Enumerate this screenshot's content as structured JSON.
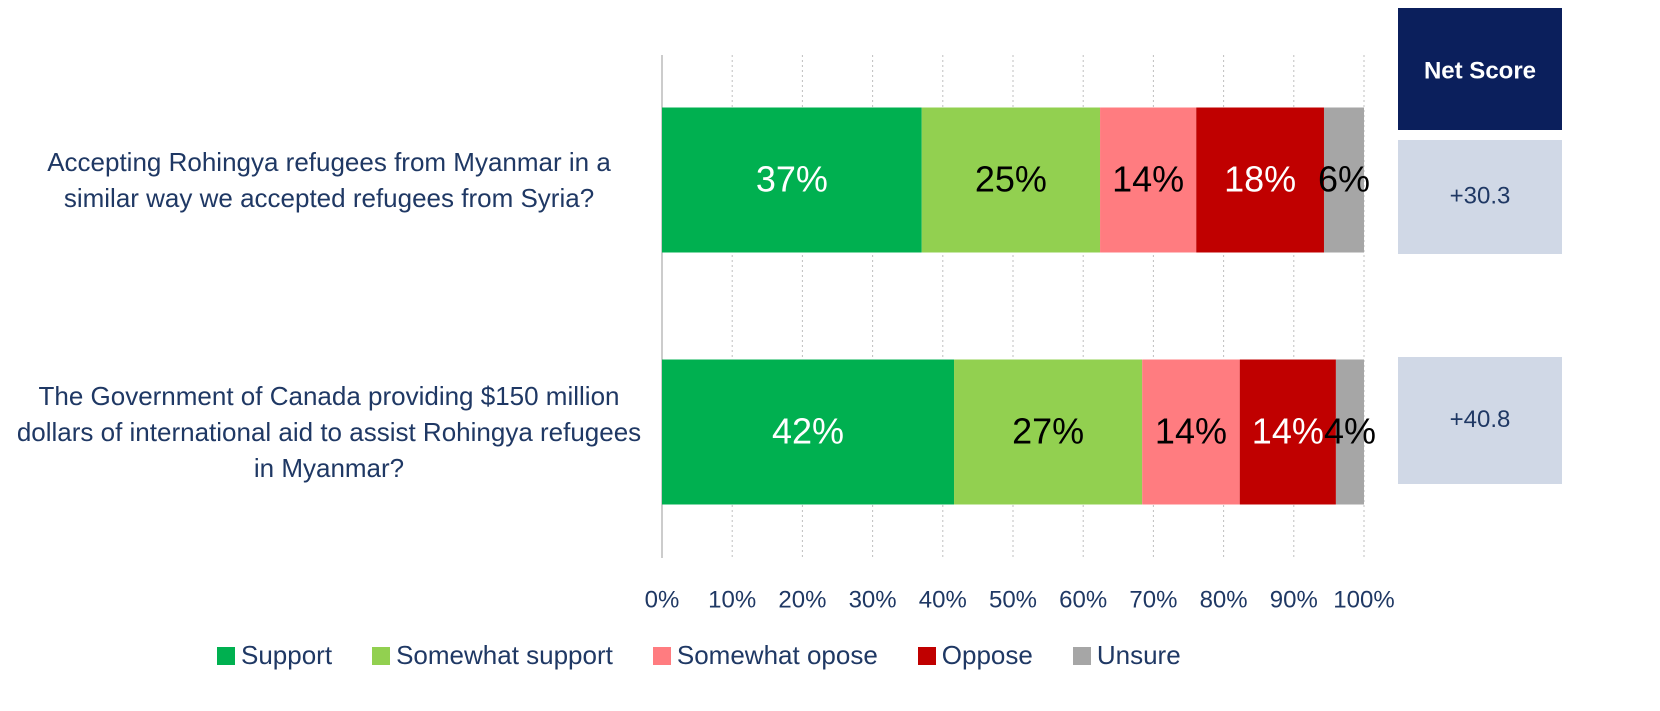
{
  "chart_data": {
    "type": "stacked_barh",
    "categories": [
      "Accepting Rohingya refugees from Myanmar in a similar way we accepted refugees from Syria?",
      "The Government of Canada providing $150 million dollars of international aid to assist Rohingya refugees in Myanmar?"
    ],
    "series": [
      {
        "name": "Support",
        "color": "#00b050",
        "label_color": "#ffffff",
        "values": [
          37.0,
          41.6
        ],
        "value_labels": [
          "37%",
          "42%"
        ]
      },
      {
        "name": "Somewhat support",
        "color": "#92d050",
        "label_color": "#000000",
        "values": [
          25.4,
          26.8
        ],
        "value_labels": [
          "25%",
          "27%"
        ]
      },
      {
        "name": "Somewhat opose",
        "color": "#ff7c80",
        "label_color": "#000000",
        "values": [
          13.7,
          13.9
        ],
        "value_labels": [
          "14%",
          "14%"
        ]
      },
      {
        "name": "Oppose",
        "color": "#c00000",
        "label_color": "#ffffff",
        "values": [
          18.2,
          13.7
        ],
        "value_labels": [
          "18%",
          "14%"
        ]
      },
      {
        "name": "Unsure",
        "color": "#a6a6a6",
        "label_color": "#000000",
        "values": [
          5.7,
          4.0
        ],
        "value_labels": [
          "6%",
          "4%"
        ]
      }
    ],
    "xlim": [
      0,
      100
    ],
    "xticks": [
      {
        "value": 0,
        "label": "0%"
      },
      {
        "value": 10,
        "label": "10%"
      },
      {
        "value": 20,
        "label": "20%"
      },
      {
        "value": 30,
        "label": "30%"
      },
      {
        "value": 40,
        "label": "40%"
      },
      {
        "value": 50,
        "label": "50%"
      },
      {
        "value": 60,
        "label": "60%"
      },
      {
        "value": 70,
        "label": "70%"
      },
      {
        "value": 80,
        "label": "80%"
      },
      {
        "value": 90,
        "label": "90%"
      },
      {
        "value": 100,
        "label": "100%"
      }
    ],
    "grid": true,
    "legend": "bottom",
    "net_score": {
      "header": "Net Score",
      "values": [
        30.3,
        40.8
      ],
      "value_labels": [
        "+30.3",
        "+40.8"
      ]
    }
  }
}
